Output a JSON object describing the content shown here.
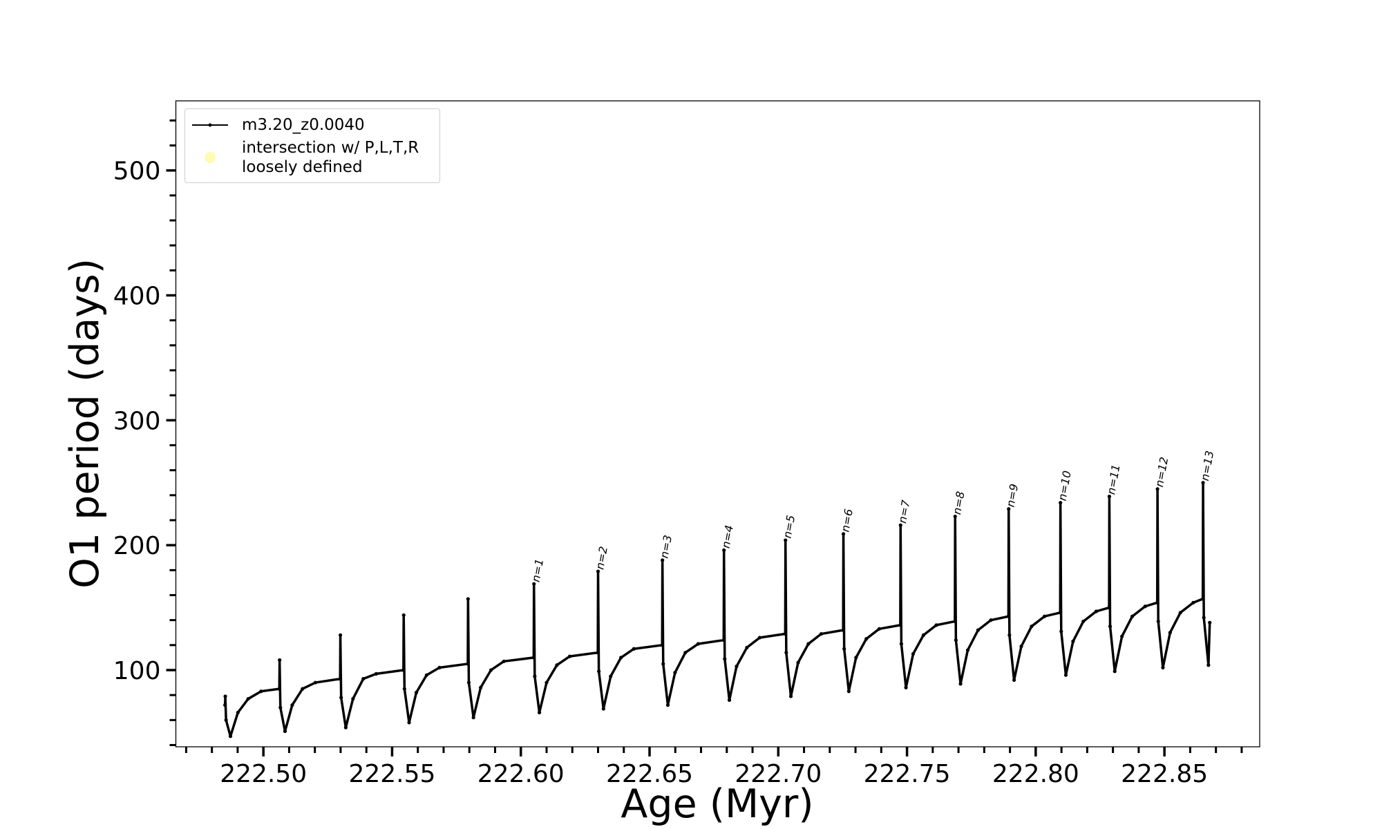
{
  "chart_data": {
    "type": "line",
    "xlabel": "Age (Myr)",
    "ylabel": "O1 period (days)",
    "xlim": [
      222.466,
      222.887
    ],
    "ylim": [
      38.6,
      555.7
    ],
    "xticks": [
      {
        "value": 222.5,
        "label": "222.50"
      },
      {
        "value": 222.55,
        "label": "222.55"
      },
      {
        "value": 222.6,
        "label": "222.60"
      },
      {
        "value": 222.65,
        "label": "222.65"
      },
      {
        "value": 222.7,
        "label": "222.70"
      },
      {
        "value": 222.75,
        "label": "222.75"
      },
      {
        "value": 222.8,
        "label": "222.80"
      },
      {
        "value": 222.85,
        "label": "222.85"
      }
    ],
    "xminorticks": [
      222.47,
      222.48,
      222.49,
      222.51,
      222.52,
      222.53,
      222.54,
      222.56,
      222.57,
      222.58,
      222.59,
      222.61,
      222.62,
      222.63,
      222.64,
      222.66,
      222.67,
      222.68,
      222.69,
      222.71,
      222.72,
      222.73,
      222.74,
      222.76,
      222.77,
      222.78,
      222.79,
      222.81,
      222.82,
      222.83,
      222.84,
      222.86,
      222.87,
      222.88
    ],
    "yticks": [
      100,
      200,
      300,
      400,
      500
    ],
    "yminorticks": [
      40,
      60,
      80,
      120,
      140,
      160,
      180,
      220,
      240,
      260,
      280,
      320,
      340,
      360,
      380,
      420,
      440,
      460,
      480,
      520,
      540
    ],
    "grid": false,
    "legend": "upper left",
    "series": [
      {
        "name": "m3.20_z0.0040",
        "color": "#000000",
        "marker": "dot",
        "x": [
          222.4851,
          222.4852,
          222.4855,
          222.4872,
          222.4901,
          222.4941,
          222.4991,
          222.5062,
          222.5063,
          222.5066,
          222.5084,
          222.5112,
          222.5152,
          222.5202,
          222.5298,
          222.5299,
          222.5302,
          222.532,
          222.5348,
          222.5388,
          222.5438,
          222.5544,
          222.5545,
          222.5548,
          222.5566,
          222.5594,
          222.5634,
          222.5684,
          222.5794,
          222.5795,
          222.5798,
          222.5816,
          222.5844,
          222.5884,
          222.5934,
          222.605,
          222.6051,
          222.6054,
          222.6072,
          222.61,
          222.614,
          222.619,
          222.6299,
          222.63,
          222.6303,
          222.6321,
          222.6349,
          222.6389,
          222.6439,
          222.6549,
          222.655,
          222.6553,
          222.6571,
          222.6599,
          222.6639,
          222.6689,
          222.6788,
          222.6789,
          222.6792,
          222.681,
          222.6838,
          222.6878,
          222.6928,
          222.7027,
          222.7028,
          222.7031,
          222.7049,
          222.7077,
          222.7117,
          222.7167,
          222.7252,
          222.7253,
          222.7256,
          222.7274,
          222.7302,
          222.7342,
          222.7392,
          222.7474,
          222.7475,
          222.7478,
          222.7496,
          222.7524,
          222.7564,
          222.7614,
          222.7686,
          222.7687,
          222.769,
          222.7708,
          222.7736,
          222.7776,
          222.7826,
          222.7894,
          222.7895,
          222.7898,
          222.7916,
          222.7944,
          222.7984,
          222.8034,
          222.8095,
          222.8096,
          222.8099,
          222.8117,
          222.8145,
          222.8185,
          222.8235,
          222.8285,
          222.8286,
          222.8289,
          222.8307,
          222.8335,
          222.8375,
          222.8425,
          222.8472,
          222.8473,
          222.8476,
          222.8494,
          222.8522,
          222.8562,
          222.8612,
          222.8649,
          222.865,
          222.8653,
          222.8671,
          222.8676
        ],
        "values": [
          72,
          79,
          60,
          47,
          66,
          77,
          83,
          85,
          108,
          70,
          51,
          72,
          85,
          90,
          93,
          128,
          78,
          54,
          77,
          93,
          97,
          100,
          144,
          85,
          58,
          82,
          96,
          102,
          105,
          157,
          90,
          62,
          86,
          100,
          107,
          110,
          169,
          95,
          66,
          90,
          104,
          111,
          114,
          179,
          99,
          69,
          95,
          110,
          117,
          120,
          188,
          105,
          72,
          98,
          114,
          121,
          124,
          196,
          109,
          76,
          103,
          118,
          126,
          129,
          204,
          114,
          79,
          106,
          121,
          129,
          132,
          209,
          117,
          83,
          110,
          125,
          133,
          136,
          216,
          121,
          86,
          113,
          128,
          136,
          139,
          223,
          124,
          89,
          116,
          132,
          140,
          143,
          229,
          128,
          92,
          119,
          135,
          143,
          146,
          234,
          131,
          96,
          123,
          139,
          147,
          150,
          239,
          135,
          99,
          127,
          143,
          151,
          154,
          245,
          139,
          102,
          130,
          146,
          154,
          157,
          250,
          142,
          104,
          138
        ]
      },
      {
        "name": "intersection w/ P,L,T,R\nloosely defined",
        "color": "#fffbb0",
        "marker": "circle",
        "x": [],
        "values": []
      }
    ],
    "annotations": [
      {
        "text": "n=1",
        "x": 222.605,
        "y": 169
      },
      {
        "text": "n=2",
        "x": 222.6299,
        "y": 179
      },
      {
        "text": "n=3",
        "x": 222.6549,
        "y": 188
      },
      {
        "text": "n=4",
        "x": 222.6788,
        "y": 196
      },
      {
        "text": "n=5",
        "x": 222.7027,
        "y": 204
      },
      {
        "text": "n=6",
        "x": 222.7252,
        "y": 209
      },
      {
        "text": "n=7",
        "x": 222.7474,
        "y": 216
      },
      {
        "text": "n=8",
        "x": 222.7686,
        "y": 223
      },
      {
        "text": "n=9",
        "x": 222.7894,
        "y": 229
      },
      {
        "text": "n=10",
        "x": 222.8095,
        "y": 234
      },
      {
        "text": "n=11",
        "x": 222.8285,
        "y": 239
      },
      {
        "text": "n=12",
        "x": 222.8472,
        "y": 245
      },
      {
        "text": "n=13",
        "x": 222.8649,
        "y": 250
      }
    ]
  }
}
